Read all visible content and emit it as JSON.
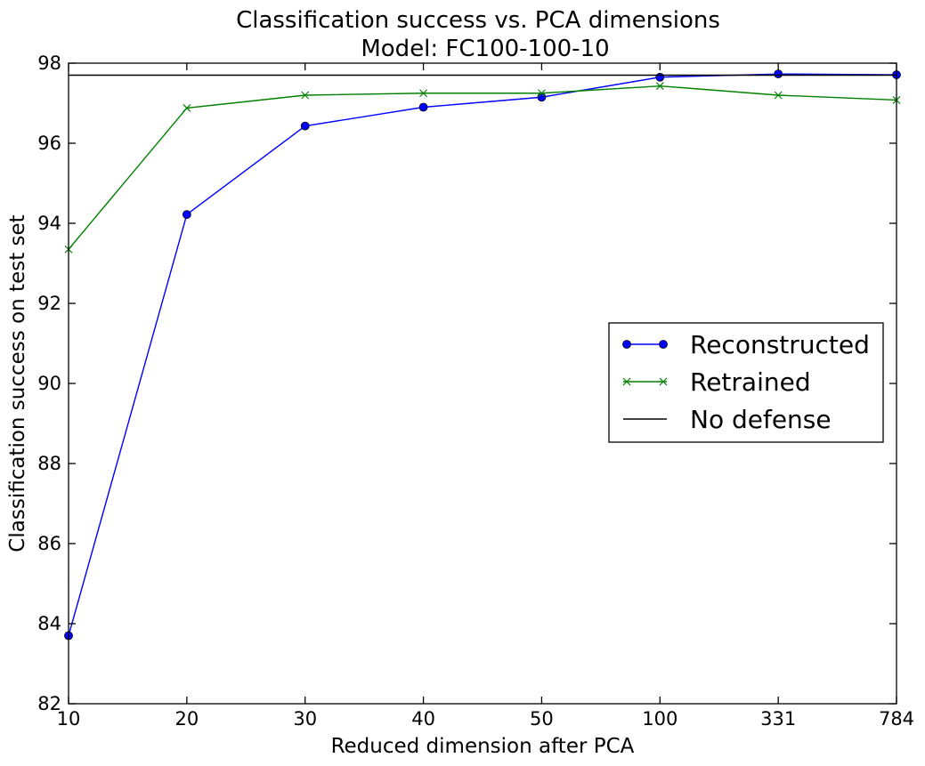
{
  "chart_data": {
    "type": "line",
    "title": "Classification success vs. PCA dimensions",
    "subtitle": "Model: FC100-100-10",
    "xlabel": "Reduced dimension after PCA",
    "ylabel": "Classification success on test set",
    "x_scale": "categorical",
    "categories": [
      "10",
      "20",
      "30",
      "40",
      "50",
      "100",
      "331",
      "784"
    ],
    "ylim": [
      82,
      98
    ],
    "yticks": [
      "82",
      "84",
      "86",
      "88",
      "90",
      "92",
      "94",
      "96",
      "98"
    ],
    "grid": false,
    "legend_position": "center-right",
    "series": [
      {
        "name": "Reconstructed",
        "color": "#0000ff",
        "marker": "circle",
        "values": [
          83.7,
          94.22,
          96.43,
          96.9,
          97.15,
          97.65,
          97.73,
          97.71
        ]
      },
      {
        "name": "Retrained",
        "color": "#008000",
        "marker": "x",
        "values": [
          93.35,
          96.88,
          97.2,
          97.25,
          97.25,
          97.43,
          97.2,
          97.08
        ]
      },
      {
        "name": "No defense",
        "color": "#000000",
        "marker": "none",
        "values": [
          97.7,
          97.7,
          97.7,
          97.7,
          97.7,
          97.7,
          97.7,
          97.7
        ]
      }
    ]
  }
}
